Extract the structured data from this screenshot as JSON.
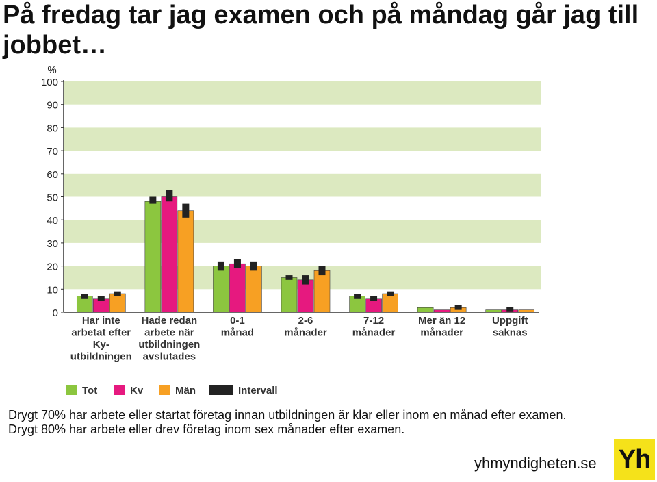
{
  "title": "På fredag tar jag examen och på måndag går jag till jobbet…",
  "caption": {
    "line1": "Drygt 70% har arbete eller startat företag innan utbildningen är klar eller inom en månad efter examen.",
    "line2": "Drygt 80% har arbete eller drev företag inom sex månader efter examen."
  },
  "footer": {
    "site": "yhmyndigheten.se",
    "logo_text": "Yh"
  },
  "colors": {
    "band": "#dce9c0",
    "tot": "#8cc63f",
    "kv": "#e6197f",
    "man": "#f7a023",
    "interval": "#222222"
  },
  "chart_data": {
    "type": "bar",
    "ylabel": "%",
    "ylim": [
      0,
      100
    ],
    "yticks": [
      0,
      10,
      20,
      30,
      40,
      50,
      60,
      70,
      80,
      90,
      100
    ],
    "grid": "alternating horizontal bands",
    "legend_position": "bottom",
    "categories": [
      [
        "Har inte",
        "arbetat efter",
        "Ky-",
        "utbildningen"
      ],
      [
        "Hade redan",
        "arbete när",
        "utbildningen",
        "avslutades"
      ],
      [
        "0-1",
        "månad"
      ],
      [
        "2-6",
        "månader"
      ],
      [
        "7-12",
        "månader"
      ],
      [
        "Mer än 12",
        "månader"
      ],
      [
        "Uppgift",
        "saknas"
      ]
    ],
    "series": [
      {
        "name": "Tot",
        "values": [
          7,
          48,
          20,
          15,
          7,
          2,
          1
        ],
        "intervals": [
          [
            6,
            8
          ],
          [
            47,
            50
          ],
          [
            18,
            22
          ],
          [
            14,
            16
          ],
          [
            6,
            8
          ],
          null,
          null
        ]
      },
      {
        "name": "Kv",
        "values": [
          6,
          50,
          21,
          14,
          6,
          1,
          1
        ],
        "intervals": [
          [
            5,
            7
          ],
          [
            48,
            53
          ],
          [
            19,
            23
          ],
          [
            12,
            16
          ],
          [
            5,
            7
          ],
          null,
          [
            0.5,
            2
          ]
        ]
      },
      {
        "name": "Män",
        "values": [
          8,
          44,
          20,
          18,
          8,
          2,
          1
        ],
        "intervals": [
          [
            7,
            9
          ],
          [
            41,
            47
          ],
          [
            18,
            22
          ],
          [
            16,
            20
          ],
          [
            7,
            9
          ],
          [
            1,
            3
          ],
          null
        ]
      }
    ],
    "legend": [
      {
        "name": "Tot",
        "color": "#8cc63f"
      },
      {
        "name": "Kv",
        "color": "#e6197f"
      },
      {
        "name": "Män",
        "color": "#f7a023"
      },
      {
        "name": "Intervall",
        "color": "#222222"
      }
    ]
  }
}
